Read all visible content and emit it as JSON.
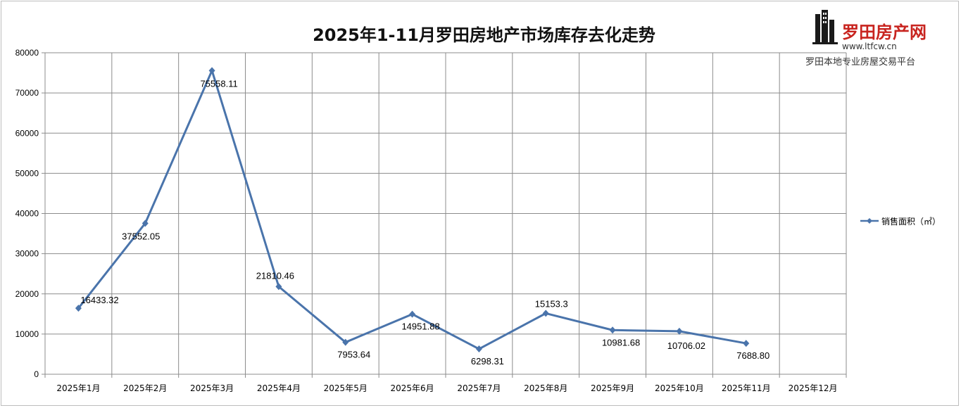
{
  "chart_data": {
    "type": "line",
    "title": "2025年1-11月罗田房地产市场库存去化走势",
    "categories": [
      "2025年1月",
      "2025年2月",
      "2025年3月",
      "2025年4月",
      "2025年5月",
      "2025年6月",
      "2025年7月",
      "2025年8月",
      "2025年9月",
      "2025年10月",
      "2025年11月",
      "2025年12月"
    ],
    "series": [
      {
        "name": "销售面积（㎡）",
        "values": [
          16433.32,
          37552.05,
          75558.11,
          21810.46,
          7953.64,
          14951.88,
          6298.31,
          15153.3,
          10981.68,
          10706.02,
          7688.8,
          null
        ],
        "labels": [
          "16433.32",
          "37552.05",
          "75558.11",
          "21810.46",
          "7953.64",
          "14951.88",
          "6298.31",
          "15153.3",
          "10981.68",
          "10706.02",
          "7688.80",
          ""
        ],
        "color": "#4a74ab"
      }
    ],
    "yticks": [
      "0",
      "10000",
      "20000",
      "30000",
      "40000",
      "50000",
      "60000",
      "70000",
      "80000"
    ],
    "ylim": [
      0,
      80000
    ],
    "grid": true,
    "legend_position": "right"
  },
  "brand": {
    "name": "罗田房产网",
    "url": "www.ltfcw.cn",
    "slogan": "罗田本地专业房屋交易平台",
    "logo_color": "#c8241f"
  }
}
